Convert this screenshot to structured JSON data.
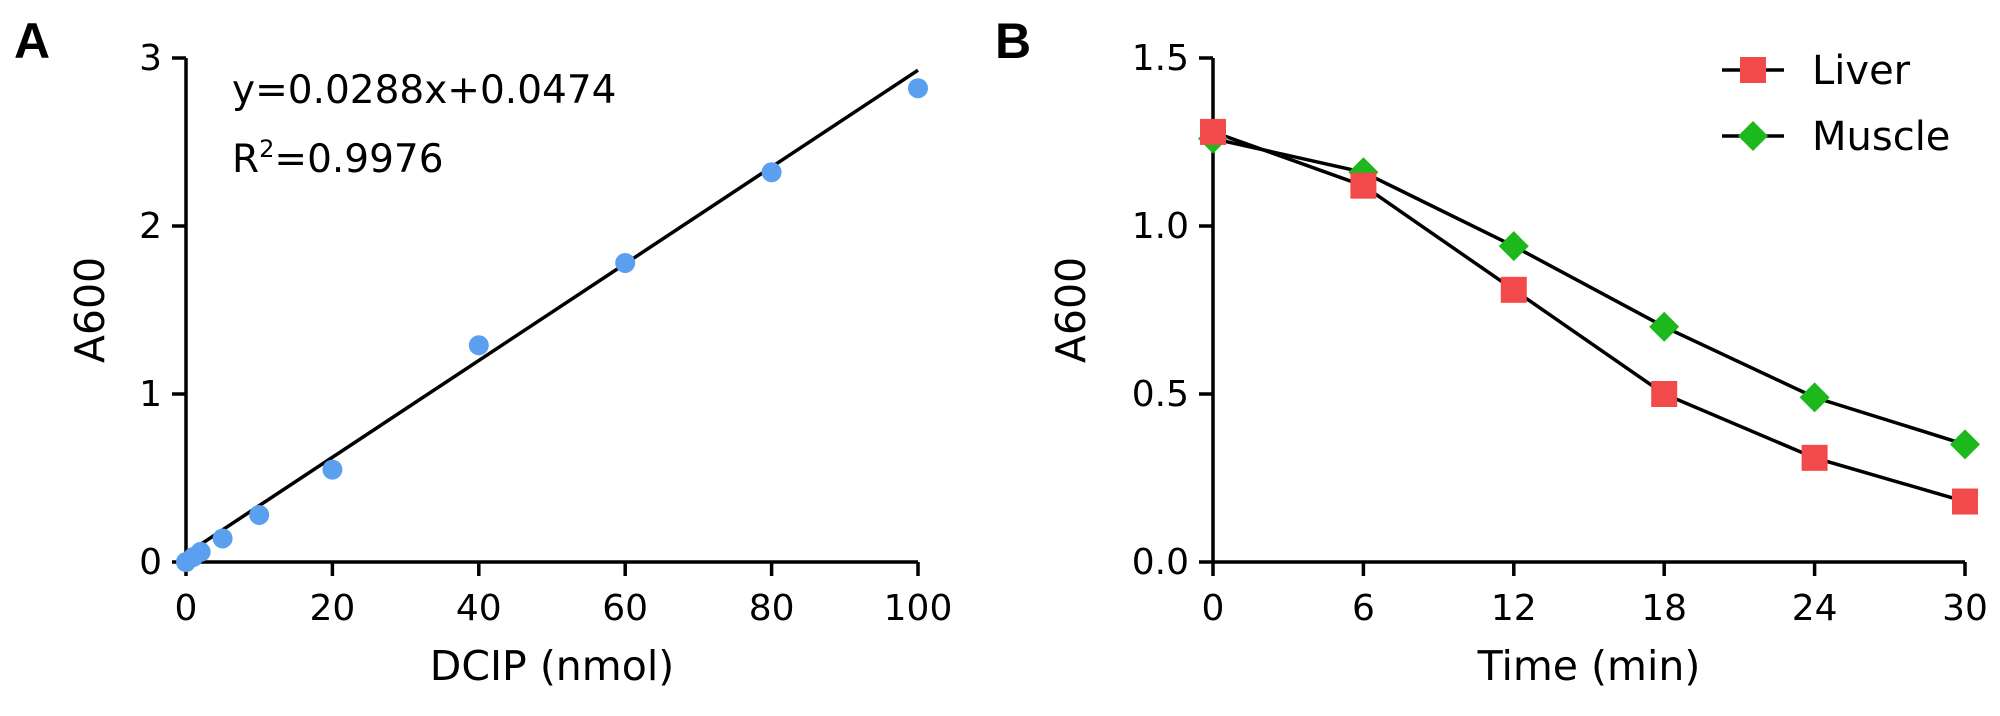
{
  "panels": {
    "A": {
      "letter": "A",
      "equation": "y=0.0288x+0.0474",
      "r2_prefix": "R",
      "r2_sup": "2",
      "r2_value": "=0.9976"
    },
    "B": {
      "letter": "B"
    }
  },
  "colors": {
    "points_A": "#5aa0ee",
    "liver": "#f24a4a",
    "muscle": "#1cb81c",
    "axis": "#000000"
  },
  "chart_data": [
    {
      "type": "scatter",
      "panel": "A",
      "xlabel": "DCIP (nmol)",
      "ylabel": "A600",
      "xlim": [
        0,
        100
      ],
      "ylim": [
        0,
        3
      ],
      "x_ticks": [
        0,
        20,
        40,
        60,
        80,
        100
      ],
      "y_ticks": [
        0,
        1,
        2,
        3
      ],
      "x_tick_labels": [
        "0",
        "20",
        "40",
        "60",
        "80",
        "100"
      ],
      "y_tick_labels": [
        "0",
        "1",
        "2",
        "3"
      ],
      "grid": false,
      "series": [
        {
          "x": [
            0,
            1,
            2,
            5,
            10,
            20,
            40,
            60,
            80,
            100
          ],
          "y": [
            0.0,
            0.03,
            0.06,
            0.14,
            0.28,
            0.55,
            1.29,
            1.78,
            2.32,
            2.82
          ]
        }
      ],
      "fit": {
        "slope": 0.0288,
        "intercept": 0.0474,
        "x_range": [
          0,
          100
        ]
      }
    },
    {
      "type": "line",
      "panel": "B",
      "xlabel": "Time (min)",
      "ylabel": "A600",
      "xlim": [
        0,
        30
      ],
      "ylim": [
        0,
        1.5
      ],
      "x_ticks": [
        0,
        6,
        12,
        18,
        24,
        30
      ],
      "y_ticks": [
        0,
        0.5,
        1.0,
        1.5
      ],
      "x_tick_labels": [
        "0",
        "6",
        "12",
        "18",
        "24",
        "30"
      ],
      "y_tick_labels": [
        "0.0",
        "0.5",
        "1.0",
        "1.5"
      ],
      "grid": false,
      "legend_position": "top-right",
      "x": [
        0,
        6,
        12,
        18,
        24,
        30
      ],
      "series": [
        {
          "name": "Liver",
          "marker": "square",
          "values": [
            1.28,
            1.12,
            0.81,
            0.5,
            0.31,
            0.18
          ]
        },
        {
          "name": "Muscle",
          "marker": "diamond",
          "values": [
            1.26,
            1.16,
            0.94,
            0.7,
            0.49,
            0.35
          ]
        }
      ]
    }
  ]
}
